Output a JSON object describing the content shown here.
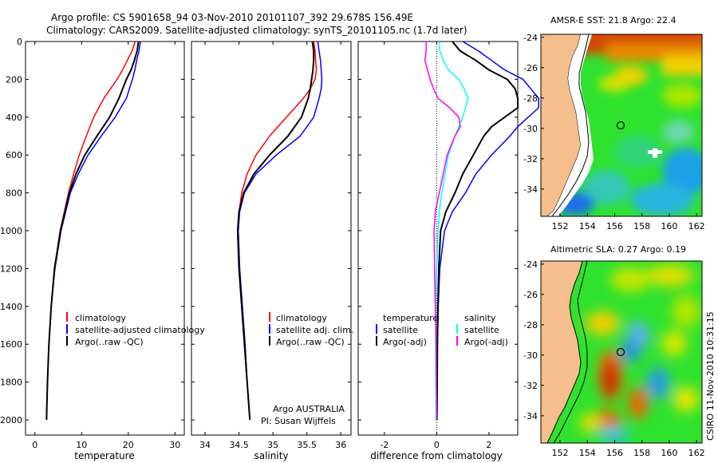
{
  "header": {
    "line1": "Argo profile: CS 5901658_94 03-Nov-2010 20101107_392 29.678S 156.49E",
    "line2": "Climatology: CARS2009. Satellite-adjusted climatology: synTS_20101105.nc (1.7d later)"
  },
  "footer_side_text": "CSIRO 11-Nov-2010 10:31:15",
  "colors": {
    "red": "#ff0000",
    "blue": "#0000ff",
    "black": "#000000",
    "cyan": "#00ffff",
    "magenta": "#ff00ff"
  },
  "chart_data": [
    {
      "type": "line",
      "id": "temperature",
      "xlabel": "temperature",
      "ylabel": "",
      "xlim": [
        -2,
        32
      ],
      "ylim": [
        2080,
        0
      ],
      "xticks": [
        0,
        10,
        20,
        30
      ],
      "yticks": [
        0,
        200,
        400,
        600,
        800,
        1000,
        1200,
        1400,
        1600,
        1800,
        2000
      ],
      "legend": {
        "placement": "lower-left",
        "entries": [
          "climatology",
          "satellite-adjusted climatology",
          "Argo(..raw -QC)"
        ]
      },
      "depth": [
        0,
        50,
        100,
        150,
        200,
        300,
        400,
        500,
        600,
        700,
        800,
        1000,
        1200,
        1400,
        1600,
        1800,
        2000
      ],
      "series": [
        {
          "name": "climatology",
          "color": "red",
          "values": [
            21.5,
            20.8,
            19.8,
            18.8,
            17.6,
            14.8,
            12.6,
            11.0,
            9.5,
            8.3,
            7.2,
            5.4,
            4.2,
            3.5,
            3.0,
            2.7,
            2.5
          ]
        },
        {
          "name": "satellite-adjusted climatology",
          "color": "blue",
          "values": [
            22.6,
            22.3,
            21.8,
            21.4,
            20.9,
            19.6,
            17.2,
            14.2,
            11.4,
            9.3,
            7.6,
            5.6,
            4.3,
            3.5,
            3.0,
            2.7,
            2.5
          ]
        },
        {
          "name": "Argo(..raw -QC)",
          "color": "black",
          "values": [
            22.2,
            21.9,
            21.3,
            20.6,
            19.6,
            18.0,
            16.0,
            13.3,
            10.7,
            8.8,
            7.4,
            5.5,
            4.2,
            3.5,
            3.0,
            2.7,
            2.5
          ]
        }
      ]
    },
    {
      "type": "line",
      "id": "salinity",
      "xlabel": "salinity",
      "xlim": [
        33.8,
        36.15
      ],
      "ylim": [
        2080,
        0
      ],
      "xticks": [
        34,
        34.5,
        35,
        35.5,
        36
      ],
      "legend": {
        "placement": "lower-left",
        "entries": [
          "climatology",
          "satellite adj. clim.",
          "Argo(..raw -QC)"
        ]
      },
      "annotations": [
        "Argo AUSTRALIA",
        "PI: Susan Wijffels"
      ],
      "depth": [
        0,
        50,
        100,
        150,
        200,
        250,
        300,
        400,
        500,
        600,
        700,
        800,
        900,
        1000,
        1200,
        1400,
        1600,
        1800,
        2000
      ],
      "series": [
        {
          "name": "climatology",
          "color": "red",
          "values": [
            35.6,
            35.62,
            35.63,
            35.64,
            35.62,
            35.55,
            35.45,
            35.2,
            34.95,
            34.75,
            34.62,
            34.54,
            34.5,
            34.49,
            34.51,
            34.55,
            34.59,
            34.62,
            34.66
          ]
        },
        {
          "name": "satellite adj. clim.",
          "color": "blue",
          "values": [
            35.66,
            35.68,
            35.7,
            35.71,
            35.72,
            35.71,
            35.68,
            35.6,
            35.4,
            35.05,
            34.75,
            34.58,
            34.51,
            34.49,
            34.51,
            34.55,
            34.59,
            34.62,
            34.66
          ]
        },
        {
          "name": "Argo(..raw -QC)",
          "color": "black",
          "values": [
            35.58,
            35.6,
            35.6,
            35.59,
            35.57,
            35.55,
            35.52,
            35.42,
            35.22,
            34.95,
            34.72,
            34.57,
            34.5,
            34.48,
            34.5,
            34.54,
            34.58,
            34.62,
            34.66
          ]
        }
      ]
    },
    {
      "type": "line",
      "id": "difference",
      "xlabel": "difference from climatology",
      "xlim": [
        -3,
        3.1
      ],
      "ylim": [
        2080,
        0
      ],
      "xticks": [
        -2,
        0,
        2
      ],
      "legend": {
        "placement": "lower-left",
        "groups": [
          {
            "title": "temperature",
            "entries": [
              "satellite",
              "Argo(-adj)"
            ]
          },
          {
            "title": "salinity",
            "entries": [
              "satellite",
              "Argo(-adj)"
            ]
          }
        ]
      },
      "depth": [
        0,
        50,
        100,
        150,
        200,
        250,
        300,
        350,
        400,
        450,
        500,
        600,
        700,
        800,
        900,
        1000,
        1200,
        1400,
        1600,
        1800,
        2000
      ],
      "series": [
        {
          "name": "temperature satellite",
          "color": "blue",
          "values": [
            1.0,
            1.6,
            2.1,
            2.6,
            3.3,
            3.6,
            3.9,
            3.9,
            3.5,
            3.1,
            2.8,
            2.1,
            1.5,
            1.1,
            0.6,
            0.3,
            0.12,
            0.06,
            0.03,
            0.02,
            0.01
          ]
        },
        {
          "name": "temperature Argo(-adj)",
          "color": "black",
          "values": [
            0.6,
            0.9,
            1.5,
            2.0,
            2.7,
            3.0,
            3.1,
            3.1,
            2.6,
            2.1,
            1.8,
            1.4,
            1.0,
            0.7,
            0.35,
            0.15,
            0.08,
            0.05,
            0.03,
            0.02,
            0.01
          ]
        },
        {
          "name": "salinity satellite",
          "color": "cyan",
          "values": [
            0.1,
            0.12,
            0.25,
            0.45,
            0.85,
            1.05,
            1.2,
            1.1,
            1.0,
            0.85,
            0.7,
            0.45,
            0.32,
            0.2,
            0.1,
            0.05,
            0.0,
            -0.04,
            -0.04,
            -0.03,
            -0.02
          ]
        },
        {
          "name": "salinity Argo(-adj)",
          "color": "magenta",
          "values": [
            -0.4,
            -0.4,
            -0.45,
            -0.35,
            -0.25,
            -0.12,
            0.05,
            0.5,
            0.85,
            0.9,
            0.7,
            0.4,
            0.25,
            0.1,
            -0.05,
            -0.1,
            -0.08,
            -0.05,
            -0.02,
            -0.01,
            0.0
          ]
        }
      ]
    }
  ],
  "maps": [
    {
      "id": "sst-map",
      "title": "AMSR-E SST: 21.8 Argo: 22.4",
      "lat_ticks": [
        "-24",
        "-26",
        "-28",
        "-30",
        "-32",
        "-34"
      ],
      "lon_ticks": [
        "152",
        "154",
        "156",
        "158",
        "160",
        "162"
      ],
      "argo_position": {
        "lat": -29.678,
        "lon": 156.49
      }
    },
    {
      "id": "sla-map",
      "title": "Altimetric SLA: 0.27 Argo: 0.19",
      "lat_ticks": [
        "-24",
        "-26",
        "-28",
        "-30",
        "-32",
        "-34"
      ],
      "lon_ticks": [
        "152",
        "154",
        "156",
        "158",
        "160",
        "162"
      ],
      "argo_position": {
        "lat": -29.678,
        "lon": 156.49
      }
    }
  ]
}
